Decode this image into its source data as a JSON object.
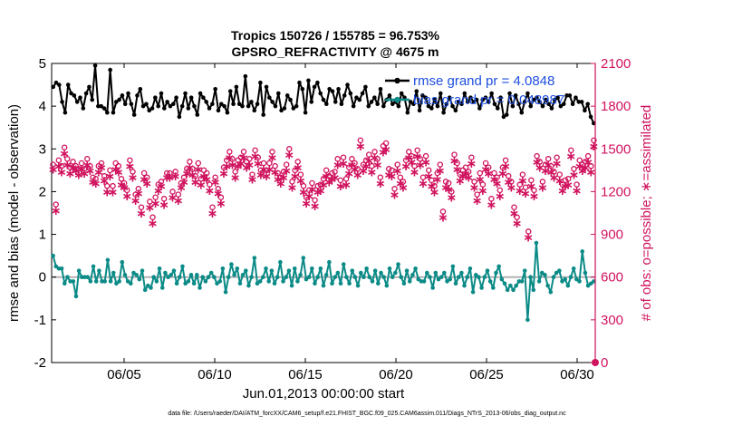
{
  "chart_data": {
    "type": "line",
    "title_line1": "Tropics 150726 / 155785 = 96.753%",
    "title_line2": "GPSRO_REFRACTIVITY @ 4675 m",
    "xlabel": "Jun.01,2013 00:00:00 start",
    "ylabel_left": "rmse and bias (model - observation)",
    "ylabel_right": "# of obs: o=possible; ∗=assimilated",
    "footnote": "data file: /Users/raeder/DAI/ATM_forcXX/CAM6_setup/f.e21.FHIST_BGC.f09_025.CAM6assim.011/Diags_NTrS_2013-06/obs_diag_output.nc",
    "x_ticks": [
      "06/05",
      "06/10",
      "06/15",
      "06/20",
      "06/25",
      "06/30"
    ],
    "x_tick_days": [
      5,
      10,
      15,
      20,
      25,
      30
    ],
    "xlim": [
      1,
      31
    ],
    "ylim_left": [
      -2,
      5
    ],
    "y_ticks_left": [
      "-2",
      "-1",
      "0",
      "1",
      "2",
      "3",
      "4",
      "5"
    ],
    "ylim_right": [
      0,
      2100
    ],
    "y_ticks_right": [
      "0",
      "300",
      "600",
      "900",
      "1200",
      "1500",
      "1800",
      "2100"
    ],
    "colors": {
      "rmse": "#000000",
      "bias": "#0b8b87",
      "obs": "#d0135e",
      "zero": "#b3b3b3",
      "legend_text": "#1f4fe0"
    },
    "series": [
      {
        "name": "rmse",
        "legend": "rmse grand pr = 4.0848",
        "axis": "left",
        "values": [
          4.45,
          4.55,
          4.5,
          4.1,
          3.85,
          4.5,
          4.3,
          4.25,
          4.1,
          4.2,
          3.95,
          4.3,
          4.45,
          4.15,
          4.95,
          4.0,
          4.0,
          3.95,
          3.85,
          4.85,
          3.85,
          4.1,
          4.15,
          4.25,
          4.05,
          4.3,
          4.05,
          3.8,
          4.25,
          4.4,
          4.0,
          4.05,
          3.9,
          3.95,
          4.2,
          4.0,
          4.3,
          3.95,
          4.1,
          4.0,
          4.05,
          4.2,
          3.75,
          4.0,
          4.3,
          3.95,
          4.2,
          4.0,
          3.8,
          4.3,
          4.2,
          4.1,
          3.95,
          4.05,
          4.4,
          3.9,
          4.05,
          4.0,
          3.85,
          4.35,
          4.05,
          4.45,
          4.05,
          4.0,
          4.7,
          4.0,
          4.1,
          3.9,
          4.05,
          4.55,
          3.8,
          4.45,
          4.2,
          4.1,
          4.0,
          4.3,
          3.9,
          3.95,
          4.25,
          4.15,
          3.95,
          4.0,
          4.55,
          4.4,
          3.85,
          4.6,
          4.1,
          4.45,
          4.55,
          4.3,
          4.15,
          4.05,
          4.4,
          4.35,
          4.1,
          4.4,
          4.05,
          4.25,
          4.5,
          4.3,
          4.0,
          4.2,
          4.15,
          4.3,
          4.45,
          4.0,
          4.1,
          4.2,
          4.05,
          4.4,
          4.0,
          4.15,
          4.25,
          4.05,
          4.1,
          4.0,
          4.3,
          4.2,
          3.85,
          4.1,
          4.05,
          4.35,
          3.9,
          4.25,
          4.2,
          4.0,
          3.95,
          4.15,
          4.0,
          4.3,
          3.85,
          4.05,
          4.2,
          4.0,
          3.9,
          4.1,
          4.05,
          4.3,
          4.1,
          4.2,
          4.1,
          4.15,
          3.95,
          4.15,
          4.2,
          4.1,
          4.3,
          4.05,
          3.95,
          4.2,
          3.75,
          3.8,
          4.3,
          4.0,
          4.25,
          4.05,
          3.85,
          4.1,
          4.3,
          4.0,
          4.15,
          4.2,
          4.1,
          4.0,
          4.15,
          4.05,
          3.95,
          4.15,
          4.2,
          4.0,
          4.05,
          4.25,
          4.25,
          4.05,
          4.2,
          4.1,
          4.1,
          3.9,
          4.05,
          3.75,
          3.6
        ]
      },
      {
        "name": "bias",
        "legend": "bias grand pr = 0.048987",
        "axis": "left",
        "values": [
          0.5,
          0.25,
          0.2,
          0.2,
          -0.15,
          0.0,
          -0.1,
          -0.1,
          -0.45,
          0.15,
          0.0,
          0.0,
          0.0,
          -0.1,
          0.25,
          -0.1,
          0.15,
          -0.1,
          -0.1,
          0.4,
          -0.1,
          0.1,
          -0.15,
          -0.1,
          0.35,
          0.05,
          -0.1,
          -0.15,
          0.1,
          0.05,
          -0.05,
          0.15,
          -0.3,
          -0.2,
          -0.25,
          0.0,
          -0.1,
          0.2,
          -0.25,
          0.1,
          0.0,
          0.05,
          0.15,
          -0.15,
          0.0,
          0.25,
          -0.15,
          -0.1,
          0.05,
          -0.15,
          0.05,
          -0.25,
          0.0,
          -0.1,
          0.0,
          0.1,
          0.0,
          -0.15,
          -0.1,
          0.2,
          -0.35,
          0.0,
          0.3,
          0.05,
          0.2,
          -0.15,
          0.05,
          0.15,
          -0.2,
          0.0,
          0.45,
          -0.15,
          -0.1,
          0.0,
          0.2,
          -0.1,
          0.15,
          -0.15,
          0.0,
          0.35,
          -0.1,
          0.0,
          0.15,
          -0.2,
          0.2,
          -0.1,
          0.05,
          0.45,
          -0.05,
          0.0,
          0.2,
          -0.15,
          0.0,
          0.2,
          -0.2,
          0.05,
          0.35,
          -0.15,
          0.0,
          0.1,
          -0.15,
          0.3,
          0.0,
          -0.15,
          0.15,
          0.0,
          -0.2,
          0.1,
          0.0,
          0.2,
          0.0,
          -0.1,
          0.15,
          -0.15,
          0.1,
          0.0,
          -0.2,
          0.2,
          0.0,
          0.1,
          0.3,
          0.0,
          -0.15,
          0.15,
          -0.1,
          0.05,
          0.2,
          -0.05,
          -0.1,
          -0.1,
          0.1,
          0.0,
          -0.25,
          0.1,
          -0.05,
          0.0,
          0.1,
          -0.1,
          -0.05,
          0.25,
          -0.15,
          0.0,
          0.1,
          -0.2,
          0.0,
          0.2,
          -0.35,
          0.05,
          0.0,
          -0.25,
          0.0,
          0.15,
          -0.1,
          -0.25,
          0.1,
          0.25,
          -0.05,
          -0.15,
          -0.3,
          -0.2,
          -0.3,
          -0.2,
          -0.1,
          -0.1,
          0.15,
          -1.0,
          0.0,
          -0.3,
          0.8,
          -0.1,
          0.1,
          0.05,
          -0.2,
          -0.35,
          0.0,
          0.1,
          0.15,
          -0.1,
          -0.05,
          -0.2,
          0.0,
          0.2,
          -0.05,
          -0.1,
          0.6,
          0.1,
          -0.2,
          -0.15,
          -0.1
        ]
      },
      {
        "name": "obs_possible",
        "axis": "right",
        "values": [
          1390,
          1110,
          1420,
          1380,
          1510,
          1430,
          1370,
          1410,
          1380,
          1360,
          1400,
          1360,
          1430,
          1380,
          1300,
          1290,
          1380,
          1400,
          1310,
          1240,
          1350,
          1240,
          1400,
          1380,
          1290,
          1260,
          1210,
          1420,
          1340,
          1180,
          1220,
          1090,
          1330,
          1300,
          1130,
          1020,
          1160,
          1250,
          1270,
          1150,
          1330,
          1330,
          1200,
          1340,
          1180,
          1260,
          1300,
          1360,
          1410,
          1360,
          1310,
          1400,
          1290,
          1350,
          1330,
          1250,
          1090,
          1300,
          1220,
          1160,
          1370,
          1420,
          1480,
          1430,
          1340,
          1420,
          1440,
          1480,
          1410,
          1430,
          1320,
          1490,
          1440,
          1350,
          1400,
          1350,
          1400,
          1480,
          1380,
          1330,
          1300,
          1340,
          1390,
          1500,
          1270,
          1350,
          1410,
          1320,
          1240,
          1160,
          1210,
          1260,
          1140,
          1240,
          1250,
          1290,
          1350,
          1310,
          1330,
          1340,
          1430,
          1280,
          1440,
          1290,
          1370,
          1430,
          1400,
          1360,
          1560,
          1390,
          1420,
          1460,
          1380,
          1480,
          1430,
          1300,
          1520,
          1540,
          1360,
          1350,
          1220,
          1390,
          1300,
          1270,
          1420,
          1480,
          1450,
          1380,
          1490,
          1430,
          1300,
          1450,
          1350,
          1280,
          1240,
          1330,
          1390,
          1060,
          1270,
          1260,
          1200,
          1460,
          1400,
          1320,
          1350,
          1370,
          1340,
          1440,
          1270,
          1180,
          1330,
          1250,
          1400,
          1370,
          1150,
          1330,
          1300,
          1210,
          1370,
          1420,
          1310,
          1270,
          1090,
          1020,
          1250,
          1320,
          1230,
          920,
          1280,
          1210,
          1450,
          1410,
          1270,
          1390,
          1430,
          1380,
          1340,
          1440,
          1320,
          1250,
          1280,
          1290,
          1490,
          1360,
          1250,
          1420,
          1390,
          1410,
          1450,
          1380,
          1560
        ]
      },
      {
        "name": "obs_assimilated",
        "axis": "right",
        "values": [
          1360,
          1070,
          1380,
          1340,
          1470,
          1390,
          1330,
          1370,
          1350,
          1320,
          1360,
          1330,
          1390,
          1350,
          1270,
          1260,
          1340,
          1370,
          1280,
          1200,
          1310,
          1200,
          1360,
          1340,
          1250,
          1230,
          1170,
          1380,
          1300,
          1140,
          1190,
          1050,
          1290,
          1260,
          1090,
          980,
          1120,
          1210,
          1240,
          1110,
          1300,
          1300,
          1160,
          1310,
          1140,
          1230,
          1270,
          1330,
          1370,
          1320,
          1270,
          1360,
          1250,
          1310,
          1290,
          1210,
          1050,
          1270,
          1190,
          1120,
          1330,
          1380,
          1440,
          1390,
          1300,
          1380,
          1400,
          1440,
          1370,
          1390,
          1290,
          1450,
          1400,
          1320,
          1360,
          1310,
          1360,
          1440,
          1340,
          1290,
          1260,
          1300,
          1350,
          1460,
          1230,
          1310,
          1370,
          1280,
          1200,
          1120,
          1170,
          1220,
          1100,
          1200,
          1210,
          1250,
          1310,
          1270,
          1290,
          1300,
          1390,
          1240,
          1400,
          1250,
          1330,
          1390,
          1360,
          1320,
          1520,
          1350,
          1380,
          1420,
          1340,
          1440,
          1390,
          1260,
          1480,
          1500,
          1320,
          1310,
          1180,
          1350,
          1260,
          1230,
          1380,
          1440,
          1410,
          1340,
          1450,
          1390,
          1260,
          1410,
          1310,
          1240,
          1200,
          1290,
          1350,
          1020,
          1230,
          1220,
          1160,
          1420,
          1360,
          1280,
          1310,
          1330,
          1300,
          1400,
          1230,
          1140,
          1290,
          1210,
          1360,
          1330,
          1110,
          1290,
          1260,
          1170,
          1330,
          1380,
          1270,
          1230,
          1050,
          980,
          1210,
          1280,
          1190,
          880,
          1240,
          1170,
          1410,
          1370,
          1230,
          1350,
          1390,
          1340,
          1300,
          1400,
          1280,
          1210,
          1240,
          1250,
          1450,
          1320,
          1210,
          1380,
          1350,
          1370,
          1410,
          1340,
          1520
        ]
      }
    ]
  }
}
